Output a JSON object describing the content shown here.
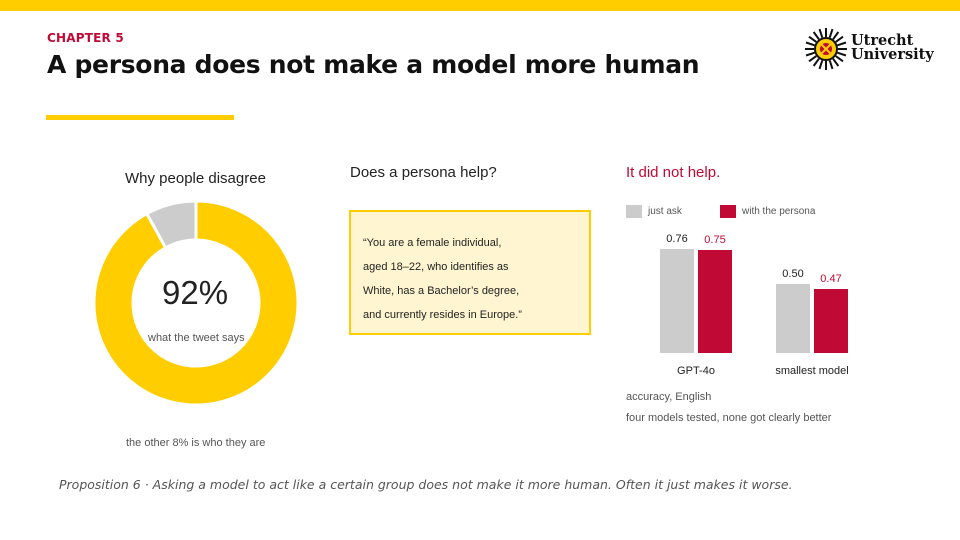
{
  "header": {
    "chapter": "CHAPTER 5",
    "title": "A persona does not make a model more human"
  },
  "logo": {
    "line1": "Utrecht",
    "line2": "University"
  },
  "left_panel": {
    "title": "Why people disagree",
    "percent_label": "92%",
    "sub_label": "what the tweet says",
    "footnote": "the other 8% is who they are"
  },
  "middle_panel": {
    "title": "Does a persona help?",
    "quote_lines": [
      "“You are a female individual,",
      "aged 18–22, who identifies as",
      "White, has a Bachelor’s degree,",
      "and currently resides in Europe.”"
    ]
  },
  "right_panel": {
    "title": "It did not help.",
    "legend": [
      "just ask",
      "with the persona"
    ],
    "note1": "accuracy, English",
    "note2": "four models tested, none got clearly better"
  },
  "footer": {
    "text": "Proposition 6  ·  Asking a model to act like a certain group does not make it more human. Often it just makes it worse."
  },
  "colors": {
    "yellow": "#FFCD00",
    "red": "#C00A35",
    "grey": "#CCCCCC"
  },
  "chart_data": [
    {
      "type": "pie",
      "title": "Why people disagree",
      "slices": [
        {
          "label": "what the tweet says",
          "value": 92
        },
        {
          "label": "who they are",
          "value": 8
        }
      ]
    },
    {
      "type": "bar",
      "categories": [
        "GPT-4o",
        "smallest model"
      ],
      "series": [
        {
          "name": "just ask",
          "values": [
            0.76,
            0.5
          ]
        },
        {
          "name": "with the persona",
          "values": [
            0.75,
            0.47
          ]
        }
      ],
      "value_labels": [
        [
          "0.76",
          "0.50"
        ],
        [
          "0.75",
          "0.47"
        ]
      ],
      "ylim": [
        0,
        1.05
      ]
    }
  ]
}
